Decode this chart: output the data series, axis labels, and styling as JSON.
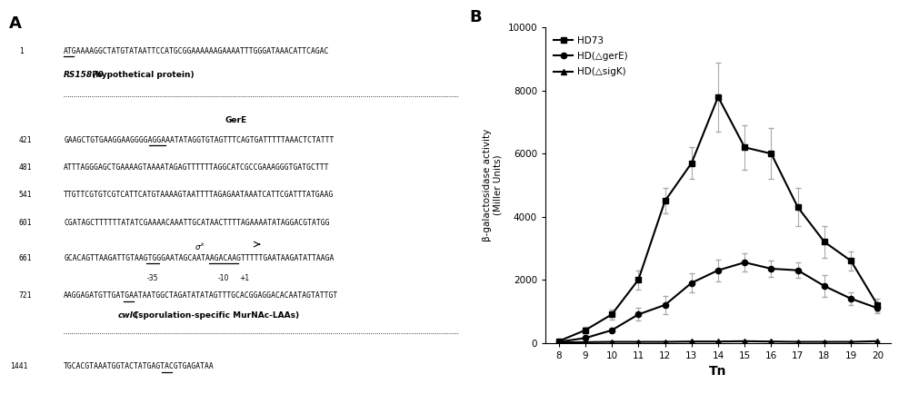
{
  "panel_B": {
    "x": [
      8,
      9,
      10,
      11,
      12,
      13,
      14,
      15,
      16,
      17,
      18,
      19,
      20
    ],
    "HD73": [
      50,
      400,
      900,
      2000,
      4500,
      5700,
      7800,
      6200,
      6000,
      4300,
      3200,
      2600,
      1200
    ],
    "HD73_err": [
      50,
      100,
      150,
      300,
      400,
      500,
      1100,
      700,
      800,
      600,
      500,
      300,
      200
    ],
    "HDgerE": [
      30,
      150,
      400,
      900,
      1200,
      1900,
      2300,
      2550,
      2350,
      2300,
      1800,
      1400,
      1100
    ],
    "HDgerE_err": [
      20,
      60,
      80,
      200,
      300,
      300,
      350,
      300,
      250,
      250,
      350,
      200,
      150
    ],
    "HDsigK": [
      10,
      20,
      30,
      30,
      30,
      40,
      40,
      50,
      40,
      30,
      30,
      30,
      50
    ],
    "HDsigK_err": [
      5,
      10,
      10,
      10,
      10,
      10,
      10,
      10,
      10,
      10,
      10,
      10,
      10
    ],
    "ylabel": "β-galactosidase activity\n(Miller Units)",
    "xlabel": "Tn",
    "ylim": [
      0,
      10000
    ],
    "yticks": [
      0,
      2000,
      4000,
      6000,
      8000,
      10000
    ],
    "legend_labels": [
      "HD73",
      "HD(△gerE)",
      "HD(△sigK)"
    ]
  },
  "panel_A": {
    "seq1_num": "1",
    "seq1_pre": "",
    "seq1_ul": "ATG",
    "seq1_post": "AAAAGGCTATGTATAATTCCATGCGGAAAAAAGAAAATTTGGGATAAACATTCAGAC",
    "seq421_num": "421",
    "seq421_pre": "GAAGCTGTGAAGGAAGGGGAGGAAATA",
    "seq421_ul": "TAGGT",
    "seq421_post": "GTAGTTTCAGTGATTTTTAAACTCTATTT",
    "seq481_num": "481",
    "seq481": "ATTTAGGGAGCTGAAAAGTAAAATAGAGTTTTTTAGGCATCGCCGAAAGGGTGATGCTTT",
    "seq541_num": "541",
    "seq541": "TTGTTCGTGTCGTCATTCATGTAAAAGTAATTTTAGAGAATAAATCATTCGATTTATGAAG",
    "seq601_num": "601",
    "seq601": "CGATAGCTTTTTTATATCGAAAACAAATTGCATAACTTTTAGAAAATATAGGACGTATGG",
    "seq661_num": "661",
    "seq661_pre": "GCACAGTTAAGATTGTAAGTGGGAAT",
    "seq661_ul1": "AGCA",
    "seq661_mid": "ATAAGACAAGTTTTTG",
    "seq661_ul2": "AATAAGATA",
    "seq661_end": "TTAAGA",
    "seq721_num": "721",
    "seq721_pre": "AAGGAGATGTTGATGAATA",
    "seq721_ul": "ATG",
    "seq721_post": "GCTAGATATATAGTTTGCACGGAGGACACAATAGTATTGT",
    "seq1441_num": "1441",
    "seq1441_pre": "TGCACGTAAATGGTACTATGAGTACGTGAGA",
    "seq1441_ul": "TAA",
    "seq1441_post": ""
  }
}
